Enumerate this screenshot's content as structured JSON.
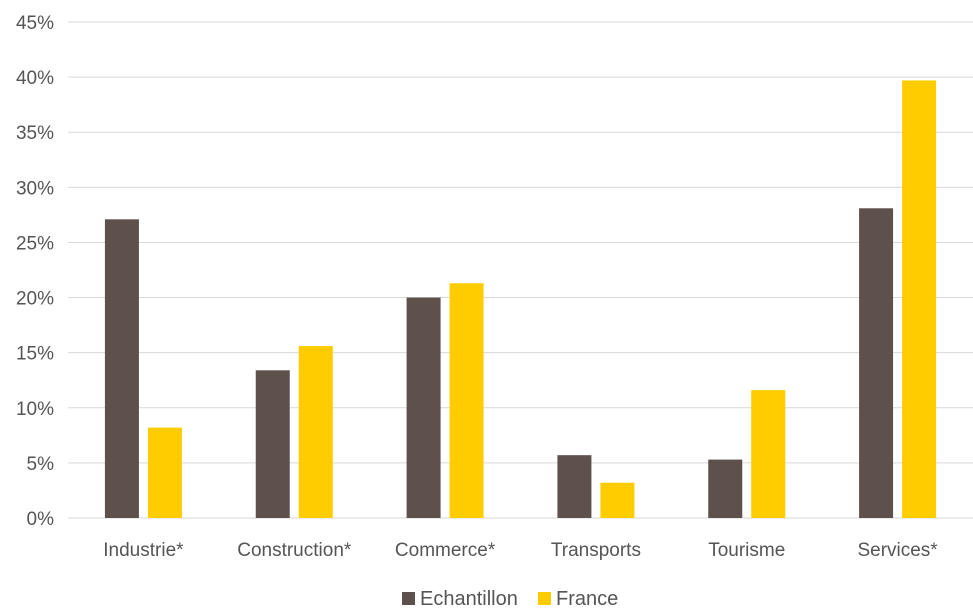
{
  "chart_data": {
    "type": "bar",
    "categories": [
      "Industrie*",
      "Construction*",
      "Commerce*",
      "Transports",
      "Tourisme",
      "Services*"
    ],
    "series": [
      {
        "name": "Echantillon",
        "color": "#5e514b",
        "values": [
          27.1,
          13.4,
          20.0,
          5.7,
          5.3,
          28.1
        ]
      },
      {
        "name": "France",
        "color": "#ffcc00",
        "values": [
          8.2,
          15.6,
          21.3,
          3.2,
          11.6,
          39.7
        ]
      }
    ],
    "ylim": [
      0,
      45
    ],
    "yticks": [
      0,
      5,
      10,
      15,
      20,
      25,
      30,
      35,
      40,
      45
    ],
    "ytick_labels": [
      "0%",
      "5%",
      "10%",
      "15%",
      "20%",
      "25%",
      "30%",
      "35%",
      "40%",
      "45%"
    ],
    "grid": true,
    "legend_position": "bottom-center",
    "title": "",
    "xlabel": "",
    "ylabel": ""
  }
}
